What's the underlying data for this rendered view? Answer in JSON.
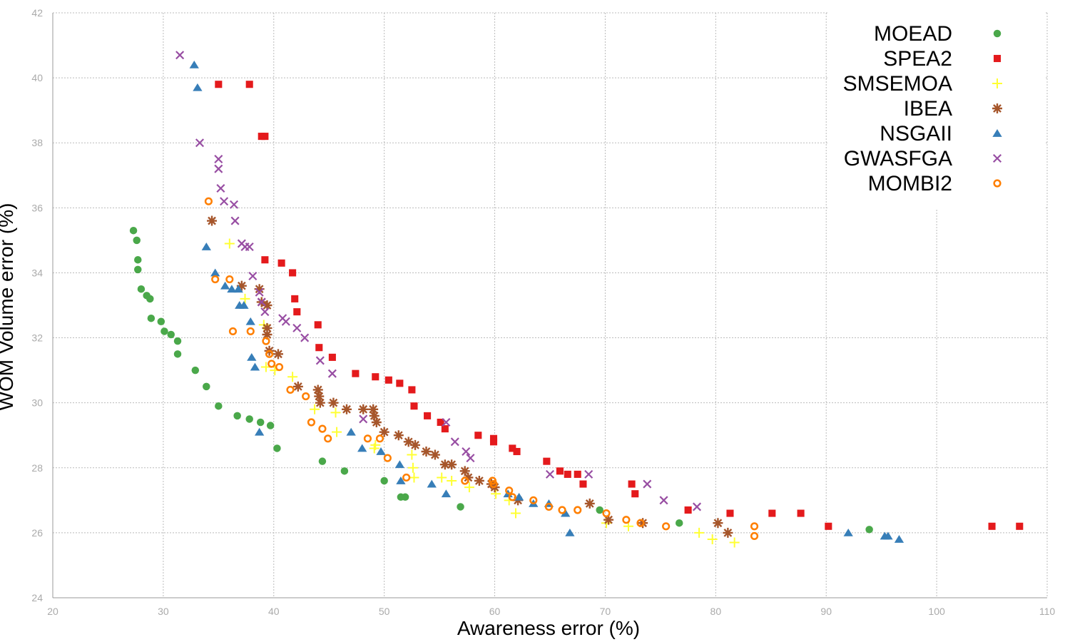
{
  "chart_data": {
    "type": "scatter",
    "xlabel": "Awareness error (%)",
    "ylabel": "WOM Volume error (%)",
    "xlim": [
      20,
      110
    ],
    "ylim": [
      24,
      42
    ],
    "x_ticks": [
      "20",
      "30",
      "40",
      "50",
      "60",
      "70",
      "80",
      "90",
      "100",
      "110"
    ],
    "y_ticks": [
      "24",
      "26",
      "28",
      "30",
      "32",
      "34",
      "36",
      "38",
      "40",
      "42"
    ],
    "grid": true,
    "legend_position": "top-right",
    "series": [
      {
        "name": "MOEAD",
        "marker": "circle",
        "color": "#4aa84a",
        "points": [
          [
            27.3,
            35.3
          ],
          [
            27.6,
            35.0
          ],
          [
            27.7,
            34.4
          ],
          [
            27.7,
            34.1
          ],
          [
            28.0,
            33.5
          ],
          [
            28.5,
            33.3
          ],
          [
            28.8,
            33.2
          ],
          [
            28.9,
            32.6
          ],
          [
            29.8,
            32.5
          ],
          [
            30.1,
            32.2
          ],
          [
            30.7,
            32.1
          ],
          [
            31.3,
            31.9
          ],
          [
            31.3,
            31.5
          ],
          [
            32.9,
            31.0
          ],
          [
            33.9,
            30.5
          ],
          [
            35.0,
            29.9
          ],
          [
            36.7,
            29.6
          ],
          [
            37.8,
            29.5
          ],
          [
            38.8,
            29.4
          ],
          [
            39.7,
            29.3
          ],
          [
            40.3,
            28.6
          ],
          [
            44.4,
            28.2
          ],
          [
            46.4,
            27.9
          ],
          [
            50.0,
            27.6
          ],
          [
            51.5,
            27.1
          ],
          [
            51.9,
            27.1
          ],
          [
            56.9,
            26.8
          ],
          [
            69.5,
            26.7
          ],
          [
            76.7,
            26.3
          ],
          [
            93.9,
            26.1
          ]
        ]
      },
      {
        "name": "SPEA2",
        "marker": "square",
        "color": "#e41a1c",
        "points": [
          [
            35.0,
            39.8
          ],
          [
            37.8,
            39.8
          ],
          [
            38.9,
            38.2
          ],
          [
            39.2,
            38.2
          ],
          [
            39.2,
            34.4
          ],
          [
            40.7,
            34.3
          ],
          [
            41.7,
            34.0
          ],
          [
            41.9,
            33.2
          ],
          [
            42.1,
            32.8
          ],
          [
            44.0,
            32.4
          ],
          [
            44.1,
            31.7
          ],
          [
            45.3,
            31.4
          ],
          [
            47.4,
            30.9
          ],
          [
            49.2,
            30.8
          ],
          [
            50.4,
            30.7
          ],
          [
            51.4,
            30.6
          ],
          [
            52.5,
            30.4
          ],
          [
            52.7,
            29.9
          ],
          [
            53.9,
            29.6
          ],
          [
            55.1,
            29.4
          ],
          [
            55.5,
            29.2
          ],
          [
            58.5,
            29.0
          ],
          [
            59.9,
            28.9
          ],
          [
            59.9,
            28.8
          ],
          [
            61.6,
            28.6
          ],
          [
            62.0,
            28.5
          ],
          [
            64.7,
            28.2
          ],
          [
            65.9,
            27.9
          ],
          [
            66.6,
            27.8
          ],
          [
            67.5,
            27.8
          ],
          [
            68.0,
            27.5
          ],
          [
            72.4,
            27.5
          ],
          [
            72.7,
            27.2
          ],
          [
            77.5,
            26.7
          ],
          [
            81.3,
            26.6
          ],
          [
            85.1,
            26.6
          ],
          [
            87.7,
            26.6
          ],
          [
            90.2,
            26.2
          ],
          [
            105.0,
            26.2
          ],
          [
            107.5,
            26.2
          ]
        ]
      },
      {
        "name": "SMSEMOA",
        "marker": "plus",
        "color": "#ffff33",
        "points": [
          [
            36.0,
            34.9
          ],
          [
            37.4,
            33.2
          ],
          [
            39.1,
            32.4
          ],
          [
            39.3,
            31.1
          ],
          [
            40.1,
            31.0
          ],
          [
            41.7,
            30.8
          ],
          [
            43.7,
            29.8
          ],
          [
            45.6,
            29.7
          ],
          [
            45.7,
            29.1
          ],
          [
            49.1,
            28.6
          ],
          [
            49.2,
            28.7
          ],
          [
            52.5,
            28.4
          ],
          [
            52.6,
            28.0
          ],
          [
            52.7,
            27.7
          ],
          [
            55.2,
            27.7
          ],
          [
            56.1,
            27.6
          ],
          [
            57.7,
            27.4
          ],
          [
            60.1,
            27.2
          ],
          [
            61.3,
            27.0
          ],
          [
            61.9,
            26.6
          ],
          [
            70.1,
            26.3
          ],
          [
            72.1,
            26.2
          ],
          [
            78.5,
            26.0
          ],
          [
            79.7,
            25.8
          ],
          [
            81.7,
            25.7
          ]
        ]
      },
      {
        "name": "IBEA",
        "marker": "star",
        "color": "#a6562b",
        "points": [
          [
            34.4,
            35.6
          ],
          [
            37.1,
            33.6
          ],
          [
            38.7,
            33.5
          ],
          [
            38.9,
            33.1
          ],
          [
            39.4,
            33.0
          ],
          [
            39.4,
            32.3
          ],
          [
            39.4,
            32.1
          ],
          [
            39.6,
            31.6
          ],
          [
            40.4,
            31.5
          ],
          [
            42.2,
            30.5
          ],
          [
            44.0,
            30.4
          ],
          [
            44.1,
            30.2
          ],
          [
            44.2,
            30.0
          ],
          [
            45.4,
            30.0
          ],
          [
            46.6,
            29.8
          ],
          [
            48.1,
            29.8
          ],
          [
            49.0,
            29.8
          ],
          [
            49.1,
            29.6
          ],
          [
            49.3,
            29.4
          ],
          [
            50.0,
            29.1
          ],
          [
            51.3,
            29.0
          ],
          [
            52.2,
            28.8
          ],
          [
            52.8,
            28.7
          ],
          [
            53.8,
            28.5
          ],
          [
            54.6,
            28.4
          ],
          [
            55.5,
            28.1
          ],
          [
            56.1,
            28.1
          ],
          [
            57.3,
            27.9
          ],
          [
            57.6,
            27.7
          ],
          [
            58.6,
            27.6
          ],
          [
            59.7,
            27.5
          ],
          [
            60.0,
            27.4
          ],
          [
            62.1,
            27.0
          ],
          [
            68.6,
            26.9
          ],
          [
            70.3,
            26.4
          ],
          [
            73.4,
            26.3
          ],
          [
            80.2,
            26.3
          ],
          [
            81.1,
            26.0
          ]
        ]
      },
      {
        "name": "NSGAII",
        "marker": "triangle",
        "color": "#377eb8",
        "points": [
          [
            32.8,
            40.4
          ],
          [
            33.1,
            39.7
          ],
          [
            33.9,
            34.8
          ],
          [
            34.7,
            34.0
          ],
          [
            35.6,
            33.6
          ],
          [
            36.2,
            33.5
          ],
          [
            36.8,
            33.5
          ],
          [
            36.9,
            33.0
          ],
          [
            37.3,
            33.0
          ],
          [
            37.9,
            32.5
          ],
          [
            38.0,
            31.4
          ],
          [
            38.3,
            31.1
          ],
          [
            38.7,
            29.1
          ],
          [
            47.0,
            29.1
          ],
          [
            48.0,
            28.6
          ],
          [
            49.7,
            28.5
          ],
          [
            51.4,
            28.1
          ],
          [
            51.5,
            27.6
          ],
          [
            54.3,
            27.5
          ],
          [
            55.6,
            27.2
          ],
          [
            61.2,
            27.2
          ],
          [
            62.2,
            27.1
          ],
          [
            63.5,
            26.9
          ],
          [
            64.9,
            26.9
          ],
          [
            66.4,
            26.6
          ],
          [
            66.8,
            26.0
          ],
          [
            92.0,
            26.0
          ],
          [
            95.3,
            25.9
          ],
          [
            95.6,
            25.9
          ],
          [
            96.6,
            25.8
          ]
        ]
      },
      {
        "name": "GWASFGA",
        "marker": "x",
        "color": "#984ea3",
        "points": [
          [
            31.5,
            40.7
          ],
          [
            33.3,
            38.0
          ],
          [
            35.0,
            37.5
          ],
          [
            35.0,
            37.2
          ],
          [
            35.2,
            36.6
          ],
          [
            35.5,
            36.2
          ],
          [
            36.4,
            36.1
          ],
          [
            36.5,
            35.6
          ],
          [
            37.1,
            34.9
          ],
          [
            37.4,
            34.8
          ],
          [
            37.8,
            34.8
          ],
          [
            38.1,
            33.9
          ],
          [
            38.7,
            33.4
          ],
          [
            38.9,
            33.1
          ],
          [
            39.2,
            32.8
          ],
          [
            40.8,
            32.6
          ],
          [
            41.1,
            32.5
          ],
          [
            42.1,
            32.3
          ],
          [
            42.8,
            32.0
          ],
          [
            44.2,
            31.3
          ],
          [
            45.3,
            30.9
          ],
          [
            48.1,
            29.5
          ],
          [
            55.6,
            29.4
          ],
          [
            56.4,
            28.8
          ],
          [
            57.4,
            28.5
          ],
          [
            57.8,
            28.3
          ],
          [
            65.0,
            27.8
          ],
          [
            68.5,
            27.8
          ],
          [
            73.8,
            27.5
          ],
          [
            75.3,
            27.0
          ],
          [
            78.3,
            26.8
          ]
        ]
      },
      {
        "name": "MOMBI2",
        "marker": "ring",
        "color": "#ff7f00",
        "points": [
          [
            34.1,
            36.2
          ],
          [
            34.7,
            33.8
          ],
          [
            36.0,
            33.8
          ],
          [
            36.3,
            32.2
          ],
          [
            37.9,
            32.2
          ],
          [
            39.3,
            31.9
          ],
          [
            39.6,
            31.5
          ],
          [
            39.8,
            31.2
          ],
          [
            40.5,
            31.1
          ],
          [
            41.5,
            30.4
          ],
          [
            42.9,
            30.2
          ],
          [
            43.4,
            29.4
          ],
          [
            44.4,
            29.2
          ],
          [
            44.9,
            28.9
          ],
          [
            48.5,
            28.9
          ],
          [
            49.6,
            28.9
          ],
          [
            50.3,
            28.3
          ],
          [
            52.0,
            27.7
          ],
          [
            57.3,
            27.6
          ],
          [
            59.8,
            27.6
          ],
          [
            59.9,
            27.5
          ],
          [
            61.3,
            27.3
          ],
          [
            61.6,
            27.1
          ],
          [
            63.5,
            27.0
          ],
          [
            64.9,
            26.8
          ],
          [
            66.1,
            26.7
          ],
          [
            67.5,
            26.7
          ],
          [
            70.1,
            26.6
          ],
          [
            71.9,
            26.4
          ],
          [
            73.2,
            26.3
          ],
          [
            75.5,
            26.2
          ],
          [
            83.5,
            26.2
          ],
          [
            83.5,
            25.9
          ]
        ]
      }
    ]
  }
}
